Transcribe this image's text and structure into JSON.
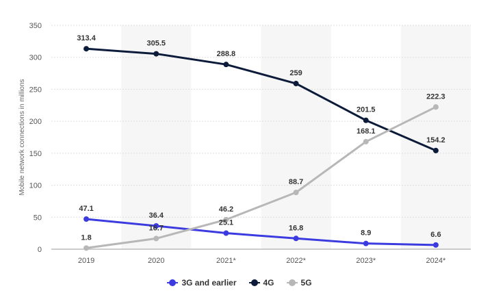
{
  "chart_data": {
    "type": "line",
    "categories": [
      "2019",
      "2020",
      "2021*",
      "2022*",
      "2023*",
      "2024*"
    ],
    "ylabel": "Mobile network connections in millions",
    "ylim": [
      0,
      350
    ],
    "yticks": [
      0,
      50,
      100,
      150,
      200,
      250,
      300,
      350
    ],
    "grid": true,
    "legend_position": "bottom",
    "series": [
      {
        "name": "3G and earlier",
        "color": "#3b3be0",
        "values": [
          47.1,
          36.4,
          25.1,
          16.8,
          8.9,
          6.6
        ],
        "labels": [
          "47.1",
          "36.4",
          "25.1",
          "16.8",
          "8.9",
          "6.6"
        ]
      },
      {
        "name": "4G",
        "color": "#0d1b3a",
        "values": [
          313.4,
          305.5,
          288.8,
          259,
          201.5,
          154.2
        ],
        "labels": [
          "313.4",
          "305.5",
          "288.8",
          "259",
          "201.5",
          "154.2"
        ]
      },
      {
        "name": "5G",
        "color": "#b7b7b7",
        "values": [
          1.8,
          16.7,
          46.2,
          88.7,
          168.1,
          222.3
        ],
        "labels": [
          "1.8",
          "16.7",
          "46.2",
          "88.7",
          "168.1",
          "222.3"
        ]
      }
    ]
  }
}
